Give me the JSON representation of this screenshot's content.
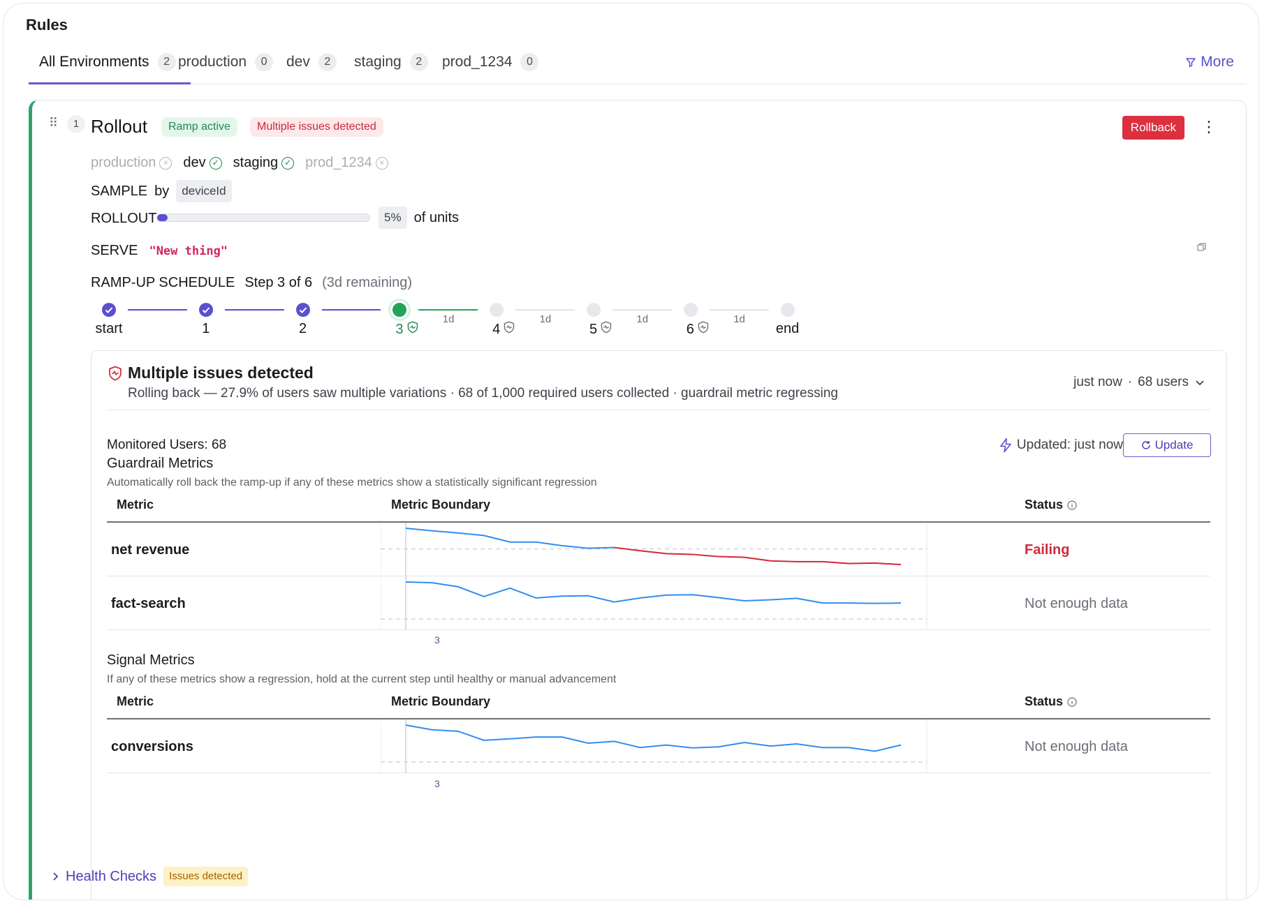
{
  "page": {
    "title": "Rules"
  },
  "tabs": [
    {
      "label": "All Environments",
      "count": "2"
    },
    {
      "label": "production",
      "count": "0"
    },
    {
      "label": "dev",
      "count": "2"
    },
    {
      "label": "staging",
      "count": "2"
    },
    {
      "label": "prod_1234",
      "count": "0"
    }
  ],
  "toolbar": {
    "more_label": "More"
  },
  "rule": {
    "number": "1",
    "title": "Rollout",
    "badge_ramp": "Ramp active",
    "badge_issues": "Multiple issues detected",
    "rollback_label": "Rollback",
    "environments": [
      {
        "name": "production",
        "enabled": false
      },
      {
        "name": "dev",
        "enabled": true
      },
      {
        "name": "staging",
        "enabled": true
      },
      {
        "name": "prod_1234",
        "enabled": false
      }
    ],
    "sample_label": "SAMPLE",
    "sample_by": "by",
    "sample_attribute": "deviceId",
    "rollout_label": "ROLLOUT",
    "rollout_percent_value": 0.05,
    "rollout_percent_text": "5%",
    "rollout_units": "of units",
    "serve_label": "SERVE",
    "serve_value": "\"New thing\"",
    "schedule_label": "RAMP-UP SCHEDULE",
    "schedule_step": "Step 3 of 6",
    "schedule_remaining": "(3d remaining)",
    "steps": [
      {
        "label": "start",
        "state": "done"
      },
      {
        "label": "1",
        "state": "done"
      },
      {
        "label": "2",
        "state": "done"
      },
      {
        "label": "3",
        "state": "current"
      },
      {
        "label": "4",
        "state": "pending"
      },
      {
        "label": "5",
        "state": "pending"
      },
      {
        "label": "6",
        "state": "pending"
      },
      {
        "label": "end",
        "state": "pending"
      }
    ],
    "segment_durations": [
      "",
      "",
      "",
      "1d",
      "1d",
      "1d",
      "1d"
    ]
  },
  "issues": {
    "title": "Multiple issues detected",
    "subtitle": "Rolling back — 27.9% of users saw multiple variations · 68 of 1,000 required users collected · guardrail metric regressing",
    "time": "just now",
    "separator": "·",
    "users": "68 users",
    "monitored_label": "Monitored Users:",
    "monitored_value": "68",
    "updated_label": "Updated: just now",
    "update_button": "Update"
  },
  "guardrail": {
    "title": "Guardrail Metrics",
    "description": "Automatically roll back the ramp-up if any of these metrics show a statistically significant regression",
    "col_metric": "Metric",
    "col_boundary": "Metric Boundary",
    "col_status": "Status",
    "step_tick": "3",
    "rows": [
      {
        "name": "net revenue",
        "status": "Failing",
        "failing": true,
        "series": [
          1.0,
          0.93,
          0.87,
          0.8,
          0.62,
          0.62,
          0.52,
          0.45,
          0.47,
          0.38,
          0.3,
          0.28,
          0.22,
          0.2,
          0.1,
          0.08,
          0.08,
          0.03,
          0.04,
          0.0
        ],
        "boundary": 0.45
      },
      {
        "name": "fact-search",
        "status": "Not enough data",
        "failing": false,
        "series": [
          1.0,
          0.98,
          0.87,
          0.6,
          0.83,
          0.56,
          0.61,
          0.62,
          0.45,
          0.56,
          0.64,
          0.65,
          0.57,
          0.48,
          0.51,
          0.55,
          0.42,
          0.42,
          0.41,
          0.42
        ],
        "boundary": 0.0
      }
    ]
  },
  "signal": {
    "title": "Signal Metrics",
    "description": "If any of these metrics show a regression, hold at the current step until healthy or manual advancement",
    "col_metric": "Metric",
    "col_boundary": "Metric Boundary",
    "col_status": "Status",
    "step_tick": "3",
    "rows": [
      {
        "name": "conversions",
        "status": "Not enough data",
        "failing": false,
        "series": [
          1.0,
          0.87,
          0.83,
          0.58,
          0.62,
          0.67,
          0.67,
          0.5,
          0.55,
          0.38,
          0.45,
          0.37,
          0.4,
          0.52,
          0.42,
          0.48,
          0.38,
          0.38,
          0.28,
          0.45
        ],
        "boundary": 0.0
      }
    ]
  },
  "health": {
    "label": "Health Checks",
    "badge": "Issues detected"
  }
}
